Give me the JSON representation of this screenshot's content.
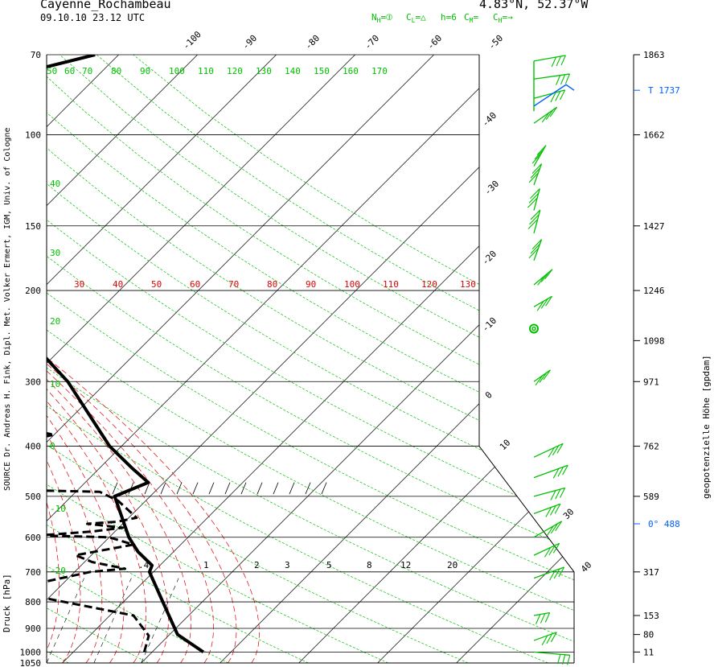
{
  "header": {
    "station": "Cayenne_Rochambeau",
    "datetime": "09.10.10  23.12 UTC",
    "location": "4.83°N, 52.37°W",
    "legend": [
      {
        "text": "N",
        "sub": "H",
        "suffix": "=⦶"
      },
      {
        "text": "C",
        "sub": "L",
        "suffix": "=△"
      },
      {
        "text": "h=6",
        "sub": "",
        "suffix": ""
      },
      {
        "text": "C",
        "sub": "M",
        "suffix": "="
      },
      {
        "text": "C",
        "sub": "H",
        "suffix": "=→"
      }
    ]
  },
  "labels": {
    "source": "SOURCE Dr. Andreas H. Fink, Dipl. Met. Volker Ermert, IGM, Univ. of Cologne",
    "ylabel": "Druck [hPa]",
    "y2label": "geopotenzielle Höhe [gpdam]"
  },
  "colors": {
    "temperature": "#000000",
    "isotherm": "#000000",
    "dry_adiabat": "#00c000",
    "moist_adiabat": "#e00000",
    "mixing_ratio": "#000000",
    "wind": "#00c000",
    "markers": "#0060ff"
  },
  "chart_data": {
    "type": "skew-t log-p",
    "pressure_axis": {
      "ticks": [
        70,
        100,
        150,
        200,
        300,
        400,
        500,
        600,
        700,
        800,
        900,
        1000,
        1050
      ],
      "log_scale": true,
      "range": [
        70,
        1050
      ]
    },
    "height_labels": [
      {
        "p": 70,
        "text": "1863"
      },
      {
        "p": 100,
        "text": "1662"
      },
      {
        "p": 150,
        "text": "1427"
      },
      {
        "p": 200,
        "text": "1246"
      },
      {
        "p": 250,
        "text": "1098"
      },
      {
        "p": 300,
        "text": "971"
      },
      {
        "p": 400,
        "text": "762"
      },
      {
        "p": 500,
        "text": "589"
      },
      {
        "p": 700,
        "text": "317"
      },
      {
        "p": 850,
        "text": "153"
      },
      {
        "p": 925,
        "text": "80"
      },
      {
        "p": 1000,
        "text": "11"
      }
    ],
    "special_markers": [
      {
        "p": 82,
        "text": "T  1737"
      },
      {
        "p": 565,
        "text": "0°  488"
      }
    ],
    "isotherms": [
      -100,
      -90,
      -80,
      -70,
      -60,
      -50,
      -40,
      -30,
      -20,
      -10,
      0,
      10,
      20,
      30,
      40
    ],
    "isotherm_labels_top": [
      "-100",
      "-90",
      "-80",
      "-70",
      "-60",
      "-50"
    ],
    "isotherm_labels_right": [
      "-40",
      "-30",
      "-20",
      "-10",
      "0",
      "10",
      "30",
      "40"
    ],
    "theta_labels": [
      "50",
      "60",
      "70",
      "80",
      "90",
      "100",
      "110",
      "120",
      "130",
      "140",
      "150",
      "160",
      "170"
    ],
    "theta_e_labels": [
      "30",
      "40",
      "50",
      "60",
      "70",
      "80",
      "90",
      "100",
      "110",
      "120",
      "130"
    ],
    "left_labels": [
      "40",
      "30",
      "20",
      "10",
      "0",
      "-10",
      "-20"
    ],
    "mixing_ratio_labels": [
      ".4",
      "1",
      "2",
      "3",
      "5",
      "8",
      "12",
      "20"
    ],
    "temperature": [
      {
        "p": 1000,
        "t": 26.5
      },
      {
        "p": 925,
        "t": 21.0
      },
      {
        "p": 850,
        "t": 17.5
      },
      {
        "p": 800,
        "t": 15.0
      },
      {
        "p": 700,
        "t": 9.5
      },
      {
        "p": 680,
        "t": 9.0
      },
      {
        "p": 640,
        "t": 5.5
      },
      {
        "p": 600,
        "t": 2.5
      },
      {
        "p": 500,
        "t": -4.5
      },
      {
        "p": 470,
        "t": -2.0
      },
      {
        "p": 440,
        "t": -6.0
      },
      {
        "p": 400,
        "t": -11.5
      },
      {
        "p": 300,
        "t": -25.0
      },
      {
        "p": 250,
        "t": -35.0
      },
      {
        "p": 200,
        "t": -46.0
      },
      {
        "p": 150,
        "t": -59.0
      },
      {
        "p": 120,
        "t": -68.0
      },
      {
        "p": 100,
        "t": -70.0
      },
      {
        "p": 88,
        "t": -75.0
      },
      {
        "p": 76,
        "t": -70.0
      },
      {
        "p": 70,
        "t": -63.0
      }
    ],
    "dewpoint": [
      {
        "p": 1000,
        "t": 19.0
      },
      {
        "p": 930,
        "t": 17.5
      },
      {
        "p": 850,
        "t": 13.0
      },
      {
        "p": 800,
        "t": 2.5
      },
      {
        "p": 760,
        "t": -6.5
      },
      {
        "p": 700,
        "t": 2.0
      },
      {
        "p": 690,
        "t": 6.0
      },
      {
        "p": 670,
        "t": 1.0
      },
      {
        "p": 650,
        "t": -2.0
      },
      {
        "p": 620,
        "t": 4.0
      },
      {
        "p": 600,
        "t": 0.0
      },
      {
        "p": 595,
        "t": -9.0
      },
      {
        "p": 585,
        "t": -3.0
      },
      {
        "p": 575,
        "t": 0.5
      },
      {
        "p": 565,
        "t": -4.5
      },
      {
        "p": 560,
        "t": -1.0
      },
      {
        "p": 550,
        "t": 1.0
      },
      {
        "p": 510,
        "t": -3.5
      },
      {
        "p": 490,
        "t": -7.0
      },
      {
        "p": 480,
        "t": -35.5
      },
      {
        "p": 440,
        "t": -40.0
      },
      {
        "p": 415,
        "t": -39.0
      },
      {
        "p": 405,
        "t": -27.5
      },
      {
        "p": 380,
        "t": -20.0
      },
      {
        "p": 350,
        "t": -35.0
      },
      {
        "p": 340,
        "t": -45.0
      },
      {
        "p": 300,
        "t": -45.0
      },
      {
        "p": 280,
        "t": -50.0
      },
      {
        "p": 265,
        "t": -53.0
      }
    ]
  }
}
